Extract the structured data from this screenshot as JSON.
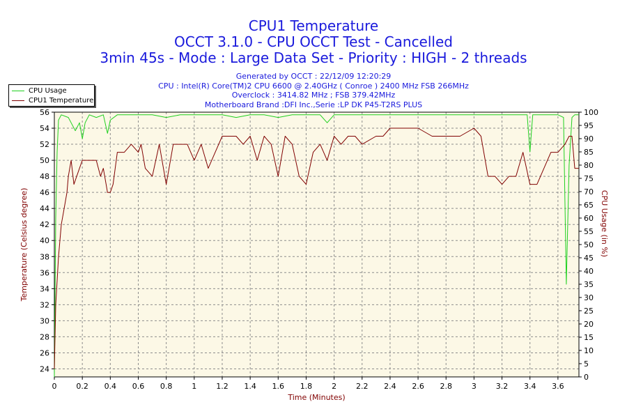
{
  "titles": {
    "line1": "CPU1 Temperature",
    "line2": "OCCT 3.1.0 - CPU OCCT Test - Cancelled",
    "line3": "3min 45s - Mode : Large Data Set - Priority : HIGH - 2 threads"
  },
  "info": {
    "generated": "Generated by OCCT : 22/12/09 12:20:29",
    "cpu": "CPU : Intel(R) Core(TM)2 CPU 6600 @ 2.40GHz ( Conroe ) 2400 MHz FSB 266MHz",
    "overclock": "Overclock : 3414.82 MHz ; FSB 379.42MHz",
    "motherboard": "Motherboard Brand :DFI Inc.,Serie :LP DK P45-T2RS PLUS"
  },
  "colors": {
    "background": "#ffffff",
    "plot_area": "#fcf8e6",
    "grid": "#8c8c8c",
    "cpu_usage": "#1fd01f",
    "cpu_temp": "#800000",
    "titles": "#1a1adc",
    "axis_text": "#000000"
  },
  "chart_data": {
    "type": "line",
    "title": "CPU1 Temperature",
    "xlabel": "Time (Minutes)",
    "ylabel_left": "Temperature (Celsius degree)",
    "ylabel_right": "CPU Usage (in %)",
    "xlim": [
      0,
      3.75
    ],
    "ylim_left": [
      23,
      56
    ],
    "ylim_right": [
      0,
      100
    ],
    "x_ticks": [
      "0",
      "0.2",
      "0.4",
      "0.6",
      "0.8",
      "1",
      "1.2",
      "1.4",
      "1.6",
      "1.8",
      "2",
      "2.2",
      "2.4",
      "2.6",
      "2.8",
      "3",
      "3.2",
      "3.4",
      "3.6"
    ],
    "x_tick_values": [
      0,
      0.2,
      0.4,
      0.6,
      0.8,
      1.0,
      1.2,
      1.4,
      1.6,
      1.8,
      2.0,
      2.2,
      2.4,
      2.6,
      2.8,
      3.0,
      3.2,
      3.4,
      3.6
    ],
    "y_left_ticks": [
      24,
      26,
      28,
      30,
      32,
      34,
      36,
      38,
      40,
      42,
      44,
      46,
      48,
      50,
      52,
      54,
      56
    ],
    "y_right_ticks": [
      0,
      5,
      10,
      15,
      20,
      25,
      30,
      35,
      40,
      45,
      50,
      55,
      60,
      65,
      70,
      75,
      80,
      85,
      90,
      95,
      100
    ],
    "grid": true,
    "legend_position": "top-left",
    "series": [
      {
        "name": "CPU Usage",
        "axis": "right",
        "x": [
          0.0,
          0.01,
          0.02,
          0.03,
          0.05,
          0.1,
          0.12,
          0.15,
          0.18,
          0.2,
          0.22,
          0.25,
          0.3,
          0.35,
          0.38,
          0.4,
          0.45,
          0.5,
          0.6,
          0.7,
          0.8,
          0.9,
          1.0,
          1.1,
          1.2,
          1.3,
          1.4,
          1.5,
          1.6,
          1.7,
          1.8,
          1.9,
          1.95,
          2.0,
          2.1,
          2.2,
          2.3,
          2.4,
          2.5,
          2.6,
          2.7,
          2.8,
          2.9,
          3.0,
          3.1,
          3.2,
          3.3,
          3.38,
          3.4,
          3.42,
          3.5,
          3.6,
          3.64,
          3.66,
          3.68,
          3.7,
          3.72,
          3.75
        ],
        "values": [
          0,
          60,
          85,
          97,
          99,
          98,
          96,
          93,
          96,
          90,
          96,
          99,
          98,
          99,
          92,
          97,
          99,
          99,
          99,
          99,
          98,
          99,
          99,
          99,
          99,
          98,
          99,
          99,
          98,
          99,
          99,
          99,
          96,
          99,
          99,
          99,
          99,
          99,
          99,
          99,
          99,
          99,
          99,
          99,
          99,
          99,
          99,
          99,
          85,
          99,
          99,
          99,
          98,
          35,
          80,
          98,
          99,
          99
        ]
      },
      {
        "name": "CPU1 Temperature",
        "axis": "left",
        "x": [
          0.0,
          0.01,
          0.03,
          0.05,
          0.07,
          0.09,
          0.1,
          0.12,
          0.14,
          0.16,
          0.18,
          0.2,
          0.25,
          0.3,
          0.33,
          0.35,
          0.37,
          0.38,
          0.4,
          0.42,
          0.45,
          0.5,
          0.55,
          0.6,
          0.62,
          0.65,
          0.7,
          0.75,
          0.8,
          0.85,
          0.9,
          0.95,
          1.0,
          1.05,
          1.1,
          1.15,
          1.2,
          1.3,
          1.35,
          1.4,
          1.45,
          1.5,
          1.55,
          1.6,
          1.65,
          1.7,
          1.75,
          1.8,
          1.85,
          1.9,
          1.95,
          2.0,
          2.05,
          2.1,
          2.15,
          2.2,
          2.3,
          2.35,
          2.4,
          2.5,
          2.6,
          2.7,
          2.8,
          2.9,
          3.0,
          3.05,
          3.1,
          3.15,
          3.2,
          3.25,
          3.3,
          3.35,
          3.4,
          3.45,
          3.5,
          3.55,
          3.6,
          3.65,
          3.68,
          3.7,
          3.72,
          3.75
        ],
        "values": [
          24,
          32,
          38,
          42,
          44,
          46,
          48,
          50,
          47,
          48,
          49,
          50,
          50,
          50,
          48,
          49,
          47,
          46,
          46,
          47,
          51,
          51,
          52,
          51,
          52,
          49,
          48,
          52,
          47,
          52,
          52,
          52,
          50,
          52,
          49,
          51,
          53,
          53,
          52,
          53,
          50,
          53,
          52,
          48,
          53,
          52,
          48,
          47,
          51,
          52,
          50,
          53,
          52,
          53,
          53,
          52,
          53,
          53,
          54,
          54,
          54,
          53,
          53,
          53,
          54,
          53,
          48,
          48,
          47,
          48,
          48,
          51,
          47,
          47,
          49,
          51,
          51,
          52,
          53,
          53,
          49,
          49
        ]
      }
    ]
  }
}
